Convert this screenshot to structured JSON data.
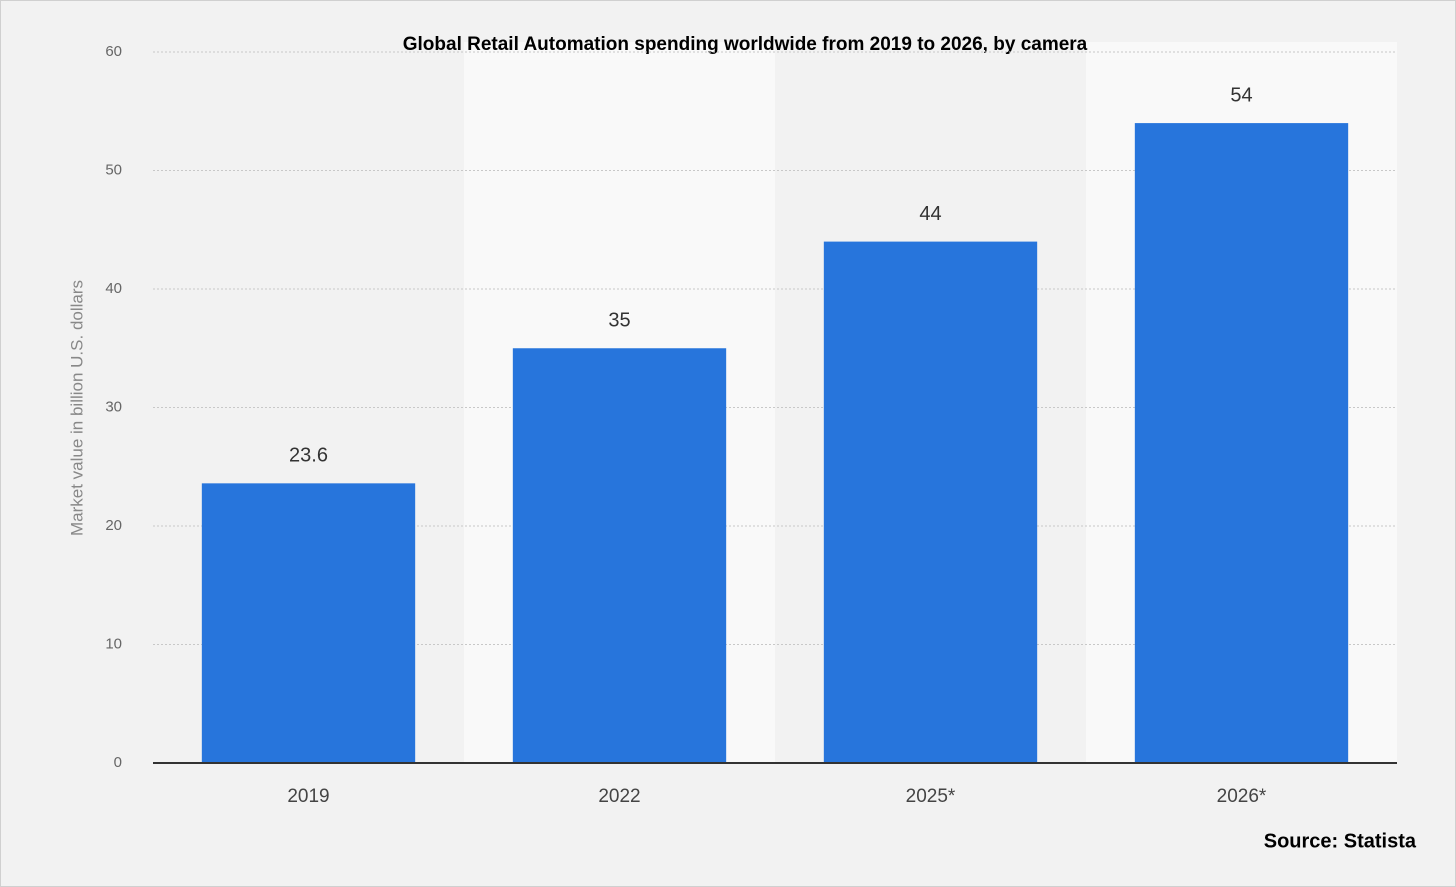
{
  "chart_data": {
    "type": "bar",
    "title": "Global Retail Automation spending worldwide from 2019 to 2026, by camera",
    "y_label": "Market value in billion U.S. dollars",
    "source": "Source: Statista",
    "categories": [
      "2019",
      "2022",
      "2025*",
      "2026*"
    ],
    "values": [
      23.6,
      35,
      44,
      54
    ],
    "color": "#2775dc",
    "ylim": [
      0,
      60
    ],
    "yticks": [
      0,
      10,
      20,
      30,
      40,
      50,
      60
    ],
    "grid": true
  }
}
